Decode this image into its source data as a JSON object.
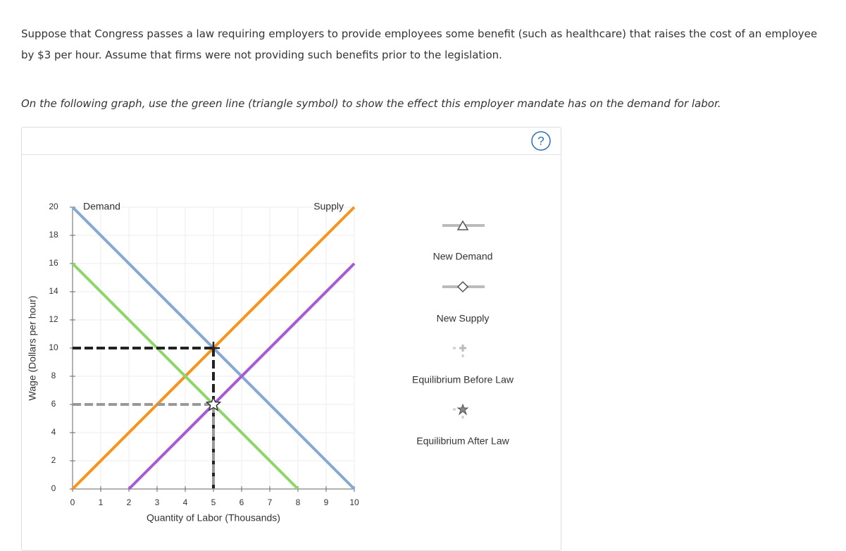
{
  "problem": {
    "text": "Suppose that Congress passes a law requiring employers to provide employees some benefit (such as healthcare) that raises the cost of an employee by $3 per hour. Assume that firms were not providing such benefits prior to the legislation.",
    "instruction": "On the following graph, use the green line (triangle symbol) to show the effect this employer mandate has on the demand for labor.",
    "help": "?"
  },
  "chart_data": {
    "type": "line",
    "x_label": "Quantity of Labor (Thousands)",
    "y_label": "Wage (Dollars per hour)",
    "xlim": [
      0,
      10
    ],
    "ylim": [
      0,
      20
    ],
    "xticks": [
      0,
      1,
      2,
      3,
      4,
      5,
      6,
      7,
      8,
      9,
      10
    ],
    "yticks": [
      0,
      2,
      4,
      6,
      8,
      10,
      12,
      14,
      16,
      18,
      20
    ],
    "grid": true,
    "series": [
      {
        "name": "Demand",
        "color": "#86a9d4",
        "x": [
          0,
          10
        ],
        "values": [
          20,
          0
        ]
      },
      {
        "name": "Supply",
        "color": "#f7941d",
        "x": [
          0,
          10
        ],
        "values": [
          0,
          20
        ]
      },
      {
        "color": "#8ed66a",
        "x": [
          0,
          8
        ],
        "values": [
          16,
          0
        ]
      },
      {
        "color": "#a75ad6",
        "x": [
          2,
          10
        ],
        "values": [
          0,
          16
        ]
      }
    ],
    "points": [
      {
        "x": 5,
        "y": 10,
        "marker": "plus",
        "color": "#222222"
      },
      {
        "x": 5,
        "y": 6,
        "marker": "star",
        "color": "#999999"
      }
    ],
    "palette": [
      "New Demand",
      "New Supply",
      "Equilibrium Before Law",
      "Equilibrium After Law"
    ]
  }
}
